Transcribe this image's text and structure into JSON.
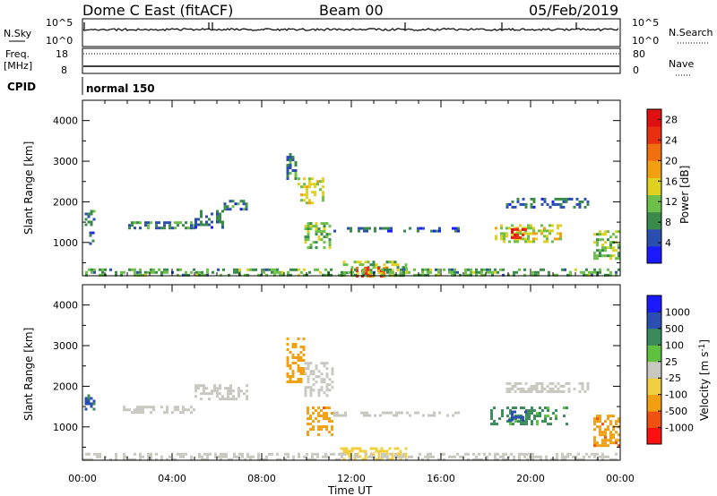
{
  "header": {
    "station": "Dome C East (fitACF)",
    "beam": "Beam 00",
    "date": "05/Feb/2019"
  },
  "aux_panels": {
    "nsky_label": "N.Sky",
    "nsearch_label": "N.Search",
    "freq_label_1": "Freq.",
    "freq_label_2": "[MHz]",
    "nave_label": "Nave",
    "cpid_label": "CPID",
    "cpid_value": "normal 150",
    "noise_ticks_left": [
      "10^5",
      "10^0"
    ],
    "noise_ticks_right": [
      "10^5",
      "10^0"
    ],
    "freq_ticks": [
      "18",
      "8"
    ],
    "nave_ticks": [
      "80",
      "0"
    ]
  },
  "colors": {
    "power_scale": [
      "#1a1aff",
      "#2b4fb0",
      "#3a8a4a",
      "#6cc04a",
      "#e0d020",
      "#f0a010",
      "#f07010",
      "#e83010",
      "#e01010"
    ],
    "velocity_scale": [
      "#ff1010",
      "#f05010",
      "#f0a010",
      "#f0d040",
      "#c8c8c0",
      "#60c040",
      "#3a8a5a",
      "#2b4fb0",
      "#1a1aff"
    ]
  },
  "chart_data": [
    {
      "type": "heatmap",
      "panel": "power",
      "xlabel": "",
      "ylabel": "Slant Range [km]",
      "x_ticks": [
        "00:00",
        "04:00",
        "08:00",
        "12:00",
        "16:00",
        "20:00",
        "00:00"
      ],
      "x_range_hours": [
        0,
        24
      ],
      "ylim": [
        180,
        4500
      ],
      "y_ticks": [
        1000,
        2000,
        3000,
        4000
      ],
      "colorbar_label": "Power [dB]",
      "colorbar_ticks": [
        "4",
        "8",
        "12",
        "16",
        "20",
        "24",
        "28"
      ],
      "colorbar_range": [
        0,
        30
      ],
      "regions": [
        {
          "t0": 0.1,
          "t1": 0.5,
          "r0": 1450,
          "r1": 1800,
          "value": 7
        },
        {
          "t0": 0.3,
          "t1": 0.5,
          "r0": 1000,
          "r1": 1400,
          "value": 6
        },
        {
          "t0": 1.8,
          "t1": 5.0,
          "r0": 1330,
          "r1": 1520,
          "value": 8
        },
        {
          "t0": 5.0,
          "t1": 6.3,
          "r0": 1400,
          "r1": 1800,
          "value": 6
        },
        {
          "t0": 6.3,
          "t1": 7.3,
          "r0": 1850,
          "r1": 2050,
          "value": 7
        },
        {
          "t0": 9.1,
          "t1": 9.5,
          "r0": 2600,
          "r1": 3200,
          "value": 7
        },
        {
          "t0": 9.6,
          "t1": 10.8,
          "r0": 2000,
          "r1": 2600,
          "value": 14
        },
        {
          "t0": 9.9,
          "t1": 11.1,
          "r0": 900,
          "r1": 1500,
          "value": 11
        },
        {
          "t0": 11.2,
          "t1": 16.8,
          "r0": 1300,
          "r1": 1380,
          "value": 6
        },
        {
          "t0": 11.5,
          "t1": 14.5,
          "r0": 200,
          "r1": 550,
          "value": 12
        },
        {
          "t0": 12.2,
          "t1": 13.6,
          "r0": 200,
          "r1": 400,
          "value": 22
        },
        {
          "t0": 18.4,
          "t1": 21.4,
          "r0": 1050,
          "r1": 1450,
          "value": 14
        },
        {
          "t0": 19.0,
          "t1": 19.8,
          "r0": 1100,
          "r1": 1350,
          "value": 26
        },
        {
          "t0": 18.9,
          "t1": 22.6,
          "r0": 1850,
          "r1": 2100,
          "value": 6
        },
        {
          "t0": 22.8,
          "t1": 24.0,
          "r0": 600,
          "r1": 1300,
          "value": 11
        },
        {
          "t0": 0.0,
          "t1": 24.0,
          "r0": 180,
          "r1": 360,
          "value": 10
        }
      ]
    },
    {
      "type": "heatmap",
      "panel": "velocity",
      "xlabel": "Time UT",
      "ylabel": "Slant Range [km]",
      "x_ticks": [
        "00:00",
        "04:00",
        "08:00",
        "12:00",
        "16:00",
        "20:00",
        "00:00"
      ],
      "x_range_hours": [
        0,
        24
      ],
      "ylim": [
        180,
        4500
      ],
      "y_ticks": [
        1000,
        2000,
        3000,
        4000
      ],
      "colorbar_label": "Velocity [m s^-1]",
      "colorbar_ticks": [
        "-1000",
        "-500",
        "-100",
        "-25",
        "25",
        "100",
        "500",
        "1000"
      ],
      "regions": [
        {
          "t0": 0.1,
          "t1": 0.5,
          "r0": 1450,
          "r1": 1800,
          "value": 600
        },
        {
          "t0": 1.8,
          "t1": 5.0,
          "r0": 1330,
          "r1": 1520,
          "value": 0
        },
        {
          "t0": 5.0,
          "t1": 7.3,
          "r0": 1700,
          "r1": 2050,
          "value": 0
        },
        {
          "t0": 9.1,
          "t1": 9.9,
          "r0": 2100,
          "r1": 3200,
          "value": -300
        },
        {
          "t0": 9.9,
          "t1": 11.2,
          "r0": 1800,
          "r1": 2600,
          "value": 0
        },
        {
          "t0": 10.0,
          "t1": 11.1,
          "r0": 800,
          "r1": 1500,
          "value": -400
        },
        {
          "t0": 11.2,
          "t1": 16.8,
          "r0": 1300,
          "r1": 1380,
          "value": 0
        },
        {
          "t0": 11.5,
          "t1": 14.5,
          "r0": 200,
          "r1": 500,
          "value": -60
        },
        {
          "t0": 18.2,
          "t1": 21.6,
          "r0": 1050,
          "r1": 1500,
          "value": 150
        },
        {
          "t0": 19.0,
          "t1": 19.8,
          "r0": 1150,
          "r1": 1400,
          "value": 700
        },
        {
          "t0": 18.9,
          "t1": 22.6,
          "r0": 1850,
          "r1": 2100,
          "value": 0
        },
        {
          "t0": 22.8,
          "t1": 24.0,
          "r0": 550,
          "r1": 1300,
          "value": -400
        },
        {
          "t0": 0.0,
          "t1": 24.0,
          "r0": 180,
          "r1": 360,
          "value": 0
        }
      ]
    }
  ]
}
